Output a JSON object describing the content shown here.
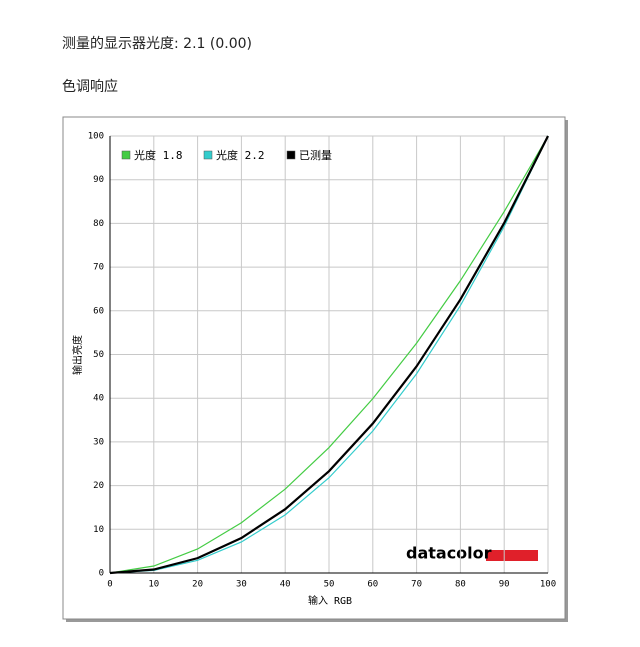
{
  "page": {
    "heading": "测量的显示器光度:  2.1 (0.00)",
    "section": "色调响应"
  },
  "chart_data": {
    "type": "line",
    "x_label": "输入 RGB",
    "y_label": "输出亮度",
    "watermark": "datacolor",
    "x": [
      0,
      10,
      20,
      30,
      40,
      50,
      60,
      70,
      80,
      90,
      100
    ],
    "series": [
      {
        "name": "光度 1.8",
        "color": "#44cc44",
        "values": [
          0,
          1.6,
          5.5,
          11.5,
          19.2,
          28.7,
          39.9,
          52.6,
          66.9,
          82.7,
          100
        ]
      },
      {
        "name": "光度 2.2",
        "color": "#33cccc",
        "values": [
          0,
          0.6,
          2.9,
          7.1,
          13.3,
          21.8,
          32.5,
          45.6,
          61.2,
          79.3,
          100
        ]
      },
      {
        "name": "已测量",
        "color": "#000000",
        "values": [
          0,
          0.8,
          3.4,
          8.0,
          14.6,
          23.3,
          34.2,
          47.3,
          62.6,
          80.1,
          100
        ]
      }
    ],
    "xlim": [
      0,
      100
    ],
    "ylim": [
      0,
      100
    ],
    "xticks": [
      0,
      10,
      20,
      30,
      40,
      50,
      60,
      70,
      80,
      90,
      100
    ],
    "yticks": [
      0,
      10,
      20,
      30,
      40,
      50,
      60,
      70,
      80,
      90,
      100
    ],
    "grid": true,
    "legend": "top-left"
  }
}
